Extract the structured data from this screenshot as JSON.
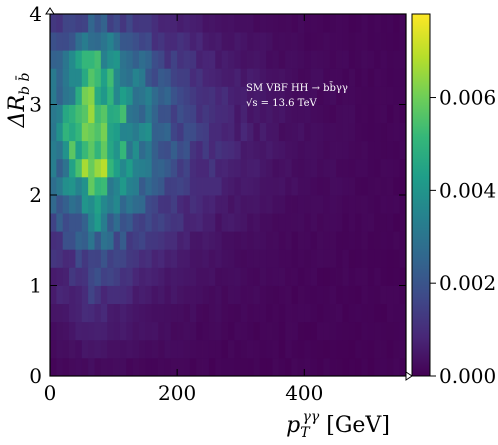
{
  "chart_data": {
    "type": "heatmap",
    "title": "",
    "xlabel": "p_T^{γγ} [GeV]",
    "ylabel": "ΔR_{b b̄}",
    "xlabel_parts": {
      "main": "p",
      "sub": "T",
      "sup": "γγ",
      "unit": " [GeV]"
    },
    "ylabel_parts": {
      "main": "ΔR",
      "sub": "b b̄"
    },
    "xlim": [
      0,
      560
    ],
    "ylim": [
      0,
      4
    ],
    "x_ticks": [
      0,
      200,
      400
    ],
    "x_tick_labels": [
      "0",
      "200",
      "400"
    ],
    "y_ticks": [
      0,
      1,
      2,
      3,
      4
    ],
    "y_tick_labels": [
      "0",
      "1",
      "2",
      "3",
      "4"
    ],
    "x_bin_width": 10,
    "y_bin_width": 0.2,
    "colorbar": {
      "min": 0.0,
      "max": 0.0078,
      "ticks": [
        0.0,
        0.002,
        0.004,
        0.006
      ],
      "tick_labels": [
        "0.000",
        "0.002",
        "0.004",
        "0.006"
      ],
      "colormap": "viridis"
    },
    "annotation_lines": [
      "SM VBF HH → bb̄γγ",
      "√s = 13.6 TeV"
    ],
    "y_bin_peak_values": [
      0.0002,
      0.0004,
      0.0006,
      0.0008,
      0.0012,
      0.0015,
      0.0019,
      0.0027,
      0.0035,
      0.0043,
      0.0052,
      0.006,
      0.0068,
      0.0071,
      0.0066,
      0.0061,
      0.0053,
      0.0045,
      0.0034,
      0.0022
    ],
    "peak_pt_gev": 75,
    "grid": false
  },
  "colors": {
    "viridis": [
      "#440154",
      "#482878",
      "#3e4a89",
      "#31688e",
      "#26828e",
      "#1f9e89",
      "#35b779",
      "#6ece58",
      "#b5de2b",
      "#fde725"
    ]
  }
}
